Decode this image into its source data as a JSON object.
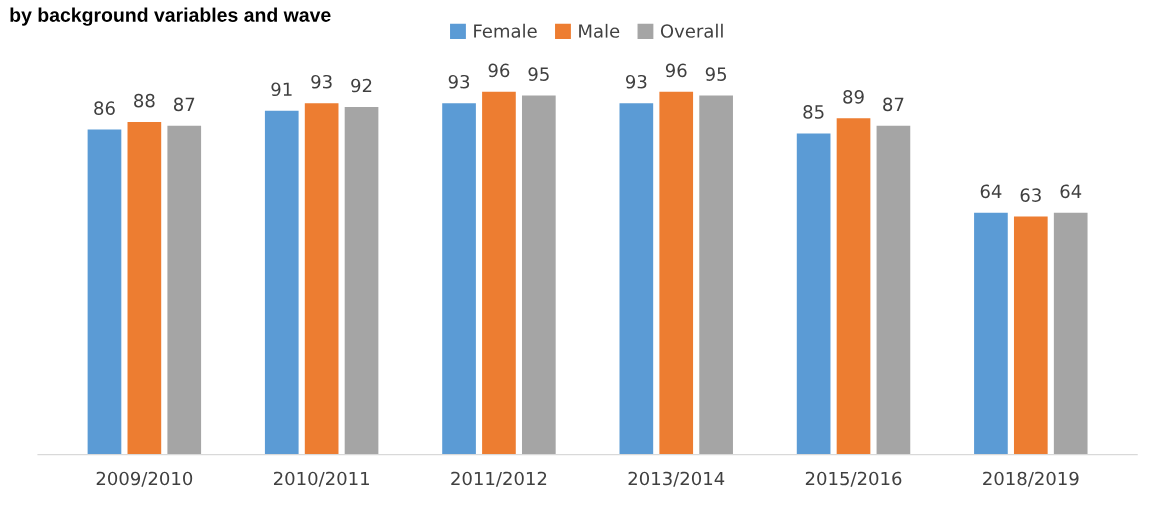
{
  "chart_data": {
    "type": "bar",
    "title": "by background variables and wave",
    "categories": [
      "2009/2010",
      "2010/2011",
      "2011/2012",
      "2013/2014",
      "2015/2016",
      "2018/2019"
    ],
    "series": [
      {
        "name": "Female",
        "color": "#5b9bd5",
        "values": [
          86,
          91,
          93,
          93,
          85,
          64
        ]
      },
      {
        "name": "Male",
        "color": "#ed7d31",
        "values": [
          88,
          93,
          96,
          96,
          89,
          63
        ]
      },
      {
        "name": "Overall",
        "color": "#a5a5a5",
        "values": [
          87,
          92,
          95,
          95,
          87,
          64
        ]
      }
    ],
    "data_labels": true,
    "legend": "top",
    "grid": false,
    "tick_labels": "x"
  }
}
